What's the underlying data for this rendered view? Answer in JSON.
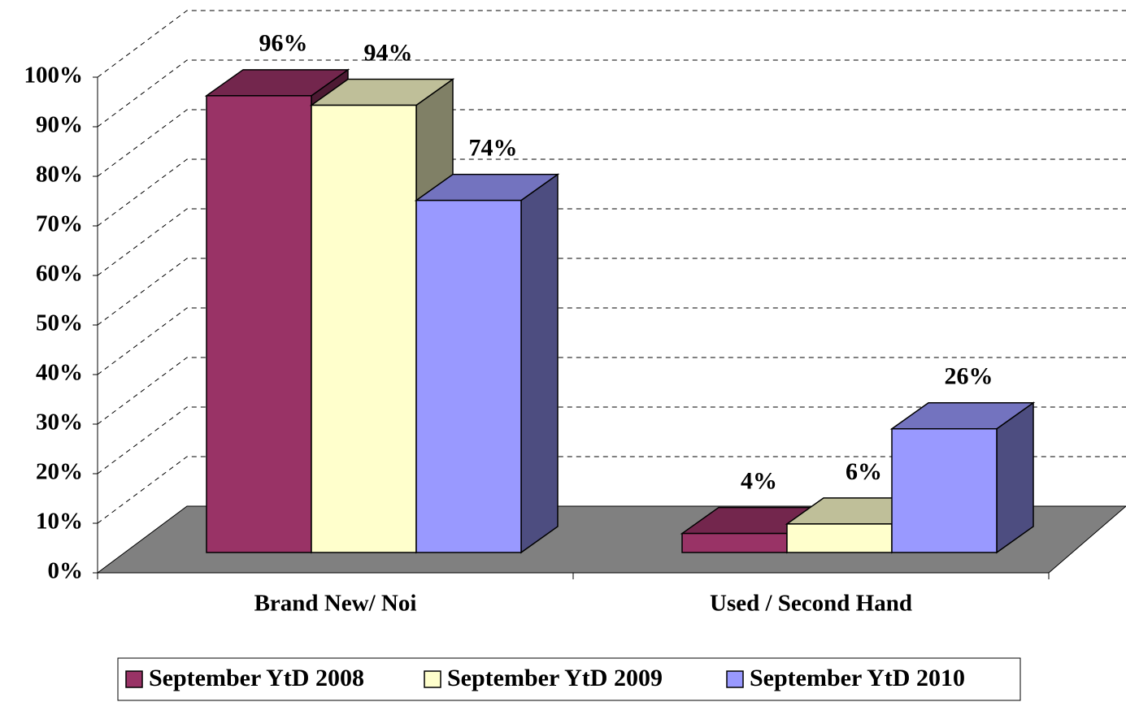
{
  "chart_data": {
    "type": "bar3d",
    "categories": [
      "Brand New/ Noi",
      "Used / Second Hand"
    ],
    "series": [
      {
        "name": "September YtD 2008",
        "color": "#993366",
        "values": [
          96,
          4
        ],
        "value_labels": [
          "96%",
          "4%"
        ]
      },
      {
        "name": "September YtD 2009",
        "color": "#ffffcc",
        "values": [
          94,
          6
        ],
        "value_labels": [
          "94%",
          "6%"
        ]
      },
      {
        "name": "September YtD 2010",
        "color": "#9999ff",
        "values": [
          74,
          26
        ],
        "value_labels": [
          "74%",
          "26%"
        ]
      }
    ],
    "ylim": [
      0,
      100
    ],
    "yticks": [
      {
        "value": 0,
        "label": "0%"
      },
      {
        "value": 10,
        "label": "10%"
      },
      {
        "value": 20,
        "label": "20%"
      },
      {
        "value": 30,
        "label": "30%"
      },
      {
        "value": 40,
        "label": "40%"
      },
      {
        "value": 50,
        "label": "50%"
      },
      {
        "value": 60,
        "label": "60%"
      },
      {
        "value": 70,
        "label": "70%"
      },
      {
        "value": 80,
        "label": "80%"
      },
      {
        "value": 90,
        "label": "90%"
      },
      {
        "value": 100,
        "label": "100%"
      }
    ],
    "grid": true,
    "legend": "bottom",
    "floor_color": "#808080"
  }
}
